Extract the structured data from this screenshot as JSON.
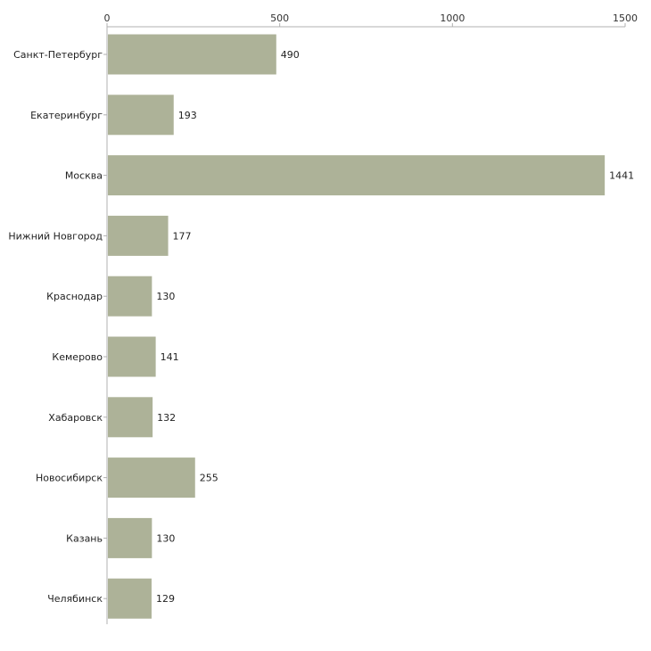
{
  "chart_data": {
    "type": "bar",
    "orientation": "horizontal",
    "title": "",
    "xlabel": "",
    "ylabel": "",
    "categories": [
      "Санкт-Петербург",
      "Екатеринбург",
      "Москва",
      "Нижний Новгород",
      "Краснодар",
      "Кемерово",
      "Хабаровск",
      "Новосибирск",
      "Казань",
      "Челябинск"
    ],
    "values": [
      490,
      193,
      1441,
      177,
      130,
      141,
      132,
      255,
      130,
      129
    ],
    "xlim": [
      0,
      1500
    ],
    "xticks": [
      0,
      500,
      1000,
      1500
    ],
    "xtick_labels": [
      "0",
      "500",
      "1000",
      "1500"
    ],
    "axis_position": "top",
    "grid": false,
    "legend": "none",
    "colors": {
      "bar": "#adb298",
      "axis": "#b0b0b0",
      "text": "#222222"
    }
  }
}
